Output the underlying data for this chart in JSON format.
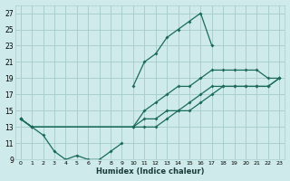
{
  "xlabel": "Humidex (Indice chaleur)",
  "bg_color": "#ceeaea",
  "grid_color": "#aacece",
  "line_color": "#1a6b5a",
  "xlim": [
    -0.5,
    23.5
  ],
  "ylim": [
    9,
    28
  ],
  "xticks": [
    0,
    1,
    2,
    3,
    4,
    5,
    6,
    7,
    8,
    9,
    10,
    11,
    12,
    13,
    14,
    15,
    16,
    17,
    18,
    19,
    20,
    21,
    22,
    23
  ],
  "yticks": [
    9,
    11,
    13,
    15,
    17,
    19,
    21,
    23,
    25,
    27
  ],
  "zigzag_x": [
    0,
    1,
    2,
    3,
    4,
    5,
    6,
    7,
    8,
    9
  ],
  "zigzag_y": [
    14,
    13,
    12,
    10,
    9,
    9.5,
    9,
    9,
    10,
    11
  ],
  "peak_x": [
    10,
    11,
    12,
    13,
    14,
    15,
    16,
    17
  ],
  "peak_y": [
    18,
    21,
    22,
    24,
    25,
    26,
    27,
    23
  ],
  "line_upper_x": [
    0,
    1,
    10,
    11,
    12,
    13,
    14,
    15,
    16,
    17,
    18,
    19,
    20,
    21,
    22,
    23
  ],
  "line_upper_y": [
    14,
    13,
    13,
    15,
    16,
    17,
    18,
    18,
    19,
    20,
    20,
    20,
    20,
    20,
    19,
    19
  ],
  "line_mid_x": [
    0,
    1,
    10,
    11,
    12,
    13,
    14,
    15,
    16,
    17,
    18,
    19,
    20,
    21,
    22,
    23
  ],
  "line_mid_y": [
    14,
    13,
    13,
    14,
    14,
    15,
    15,
    16,
    17,
    18,
    18,
    18,
    18,
    18,
    18,
    19
  ],
  "line_low_x": [
    0,
    1,
    10,
    11,
    12,
    13,
    14,
    15,
    16,
    17,
    18,
    19,
    20,
    21,
    22,
    23
  ],
  "line_low_y": [
    14,
    13,
    13,
    13,
    13,
    14,
    15,
    15,
    16,
    17,
    18,
    18,
    18,
    18,
    18,
    19
  ]
}
